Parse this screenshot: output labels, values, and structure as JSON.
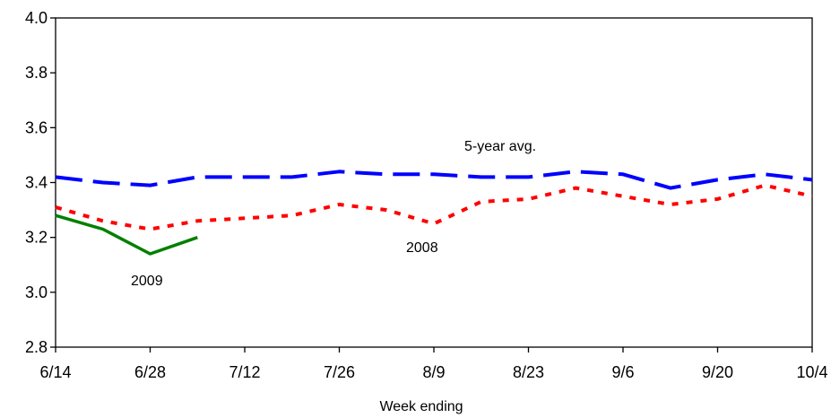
{
  "chart_data": {
    "type": "line",
    "title": "",
    "xlabel": "Week ending",
    "ylabel": "",
    "ylim": [
      2.8,
      4.0
    ],
    "yticks": [
      "2.8",
      "3.0",
      "3.2",
      "3.4",
      "3.6",
      "3.8",
      "4.0"
    ],
    "xtick_labels": [
      "6/14",
      "6/28",
      "7/12",
      "7/26",
      "8/9",
      "8/23",
      "9/6",
      "9/20",
      "10/4"
    ],
    "x_weeks": [
      "6/14",
      "6/21",
      "6/28",
      "7/5",
      "7/12",
      "7/19",
      "7/26",
      "8/2",
      "8/9",
      "8/16",
      "8/23",
      "8/30",
      "9/6",
      "9/13",
      "9/20",
      "9/27",
      "10/4"
    ],
    "grid": false,
    "series": [
      {
        "name": "5-year avg.",
        "color": "#0000ff",
        "style": "dashed",
        "values": [
          3.42,
          3.4,
          3.39,
          3.42,
          3.42,
          3.42,
          3.44,
          3.43,
          3.43,
          3.42,
          3.42,
          3.44,
          3.43,
          3.38,
          3.41,
          3.43,
          3.41
        ]
      },
      {
        "name": "2008",
        "color": "#ff0000",
        "style": "dotted",
        "values": [
          3.31,
          3.26,
          3.23,
          3.26,
          3.27,
          3.28,
          3.32,
          3.3,
          3.25,
          3.33,
          3.34,
          3.38,
          3.35,
          3.32,
          3.34,
          3.39,
          3.35
        ]
      },
      {
        "name": "2009",
        "color": "#008000",
        "style": "solid",
        "values": [
          3.28,
          3.23,
          3.14,
          3.2
        ]
      }
    ]
  }
}
